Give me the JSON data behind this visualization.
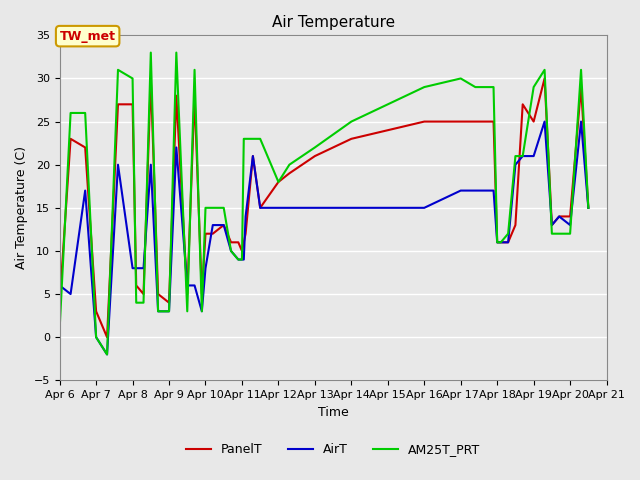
{
  "title": "Air Temperature",
  "ylabel": "Air Temperature (C)",
  "xlabel": "Time",
  "ylim": [
    -5,
    35
  ],
  "bg_color": "#e8e8e8",
  "plot_bg_color": "#e8e8e8",
  "annotation_text": "TW_met",
  "annotation_color": "#cc0000",
  "annotation_bg": "#ffffcc",
  "annotation_border": "#cc9900",
  "x_ticks": [
    "Apr 6",
    "Apr 7",
    "Apr 8",
    "Apr 9",
    "Apr 10",
    "Apr 11",
    "Apr 12",
    "Apr 13",
    "Apr 14",
    "Apr 15",
    "Apr 16",
    "Apr 17",
    "Apr 18",
    "Apr 19",
    "Apr 20",
    "Apr 21"
  ],
  "PanelT": {
    "color": "#cc0000",
    "x": [
      6,
      6.3,
      6.7,
      7.0,
      7.3,
      7.6,
      8.0,
      8.1,
      8.3,
      8.5,
      8.7,
      9.0,
      9.2,
      9.5,
      9.7,
      9.9,
      10.0,
      10.2,
      10.5,
      10.7,
      10.9,
      11.0,
      11.05,
      11.1,
      11.3,
      11.5,
      12.0,
      12.3,
      13.0,
      14.0,
      15.0,
      16.0,
      17.0,
      17.5,
      17.9,
      18.0,
      18.1,
      18.3,
      18.5,
      18.7,
      19.0,
      19.3,
      19.5,
      19.7,
      20.0,
      20.3,
      20.5
    ],
    "y": [
      4,
      23,
      22,
      3,
      0,
      27,
      27,
      6,
      5,
      30,
      5,
      4,
      28,
      5,
      28,
      5,
      12,
      12,
      13,
      11,
      11,
      10,
      11,
      12,
      21,
      15,
      18,
      19,
      21,
      23,
      24,
      25,
      25,
      25,
      25,
      11,
      11,
      11,
      13,
      27,
      25,
      30,
      13,
      14,
      14,
      29,
      15
    ]
  },
  "AirT": {
    "color": "#0000cc",
    "x": [
      6,
      6.3,
      6.7,
      7.0,
      7.3,
      7.6,
      8.0,
      8.1,
      8.3,
      8.5,
      8.7,
      9.0,
      9.2,
      9.5,
      9.7,
      9.9,
      10.0,
      10.2,
      10.5,
      10.7,
      10.9,
      11.0,
      11.05,
      11.1,
      11.3,
      11.5,
      12.0,
      12.3,
      13.0,
      14.0,
      15.0,
      16.0,
      17.0,
      17.5,
      17.9,
      18.0,
      18.1,
      18.3,
      18.5,
      18.7,
      19.0,
      19.3,
      19.5,
      19.7,
      20.0,
      20.3,
      20.5
    ],
    "y": [
      6,
      5,
      17,
      0,
      -2,
      20,
      8,
      8,
      8,
      20,
      3,
      3,
      22,
      6,
      6,
      3,
      8,
      13,
      13,
      10,
      9,
      9,
      9,
      14,
      21,
      15,
      15,
      15,
      15,
      15,
      15,
      15,
      17,
      17,
      17,
      11,
      11,
      11,
      20,
      21,
      21,
      25,
      13,
      14,
      13,
      25,
      15
    ]
  },
  "AM25T_PRT": {
    "color": "#00cc00",
    "x": [
      6,
      6.3,
      6.7,
      7.0,
      7.3,
      7.6,
      8.0,
      8.1,
      8.3,
      8.5,
      8.7,
      9.0,
      9.2,
      9.5,
      9.7,
      9.9,
      10.0,
      10.2,
      10.5,
      10.7,
      10.9,
      11.0,
      11.05,
      11.1,
      11.3,
      11.5,
      12.0,
      12.3,
      13.0,
      14.0,
      15.0,
      16.0,
      17.0,
      17.4,
      17.9,
      18.0,
      18.1,
      18.3,
      18.5,
      18.7,
      19.0,
      19.3,
      19.5,
      19.7,
      20.0,
      20.3,
      20.5
    ],
    "y": [
      1,
      26,
      26,
      0,
      -2,
      31,
      30,
      4,
      4,
      33,
      3,
      3,
      33,
      3,
      31,
      3,
      15,
      15,
      15,
      10,
      9,
      9,
      23,
      23,
      23,
      23,
      18,
      20,
      22,
      25,
      27,
      29,
      30,
      29,
      29,
      11,
      11,
      12,
      21,
      21,
      29,
      31,
      12,
      12,
      12,
      31,
      15
    ]
  }
}
